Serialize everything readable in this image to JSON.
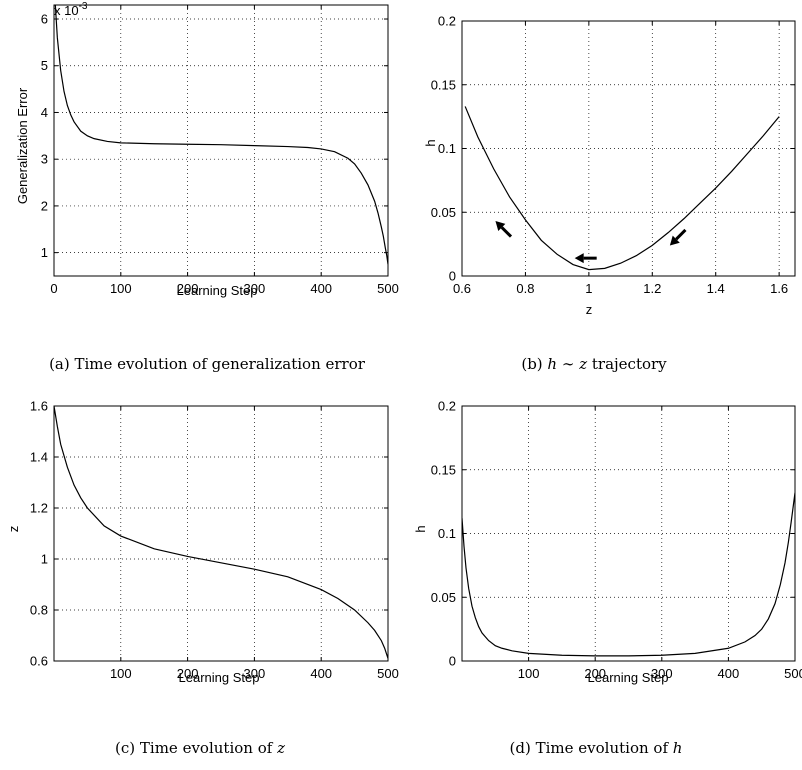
{
  "chart_data": [
    {
      "id": "a",
      "type": "line",
      "xlabel": "Learning Step",
      "ylabel": "Generalization Error",
      "exponent_label": "x 10",
      "exponent_power": "-3",
      "xlim": [
        0,
        500
      ],
      "ylim": [
        0.5,
        6.3
      ],
      "xticks": [
        0,
        100,
        200,
        300,
        400,
        500
      ],
      "yticks": [
        1,
        2,
        3,
        4,
        5,
        6
      ],
      "grid": true,
      "series": [
        {
          "x": [
            2,
            5,
            10,
            15,
            20,
            25,
            30,
            40,
            50,
            60,
            80,
            100,
            150,
            200,
            250,
            300,
            350,
            380,
            400,
            420,
            440,
            450,
            460,
            470,
            480,
            485,
            490,
            493,
            496,
            498,
            500
          ],
          "values": [
            6.3,
            5.6,
            4.9,
            4.45,
            4.15,
            3.95,
            3.8,
            3.6,
            3.5,
            3.44,
            3.38,
            3.35,
            3.33,
            3.32,
            3.31,
            3.29,
            3.27,
            3.25,
            3.22,
            3.16,
            3.02,
            2.9,
            2.7,
            2.45,
            2.1,
            1.85,
            1.55,
            1.35,
            1.1,
            0.95,
            0.75
          ]
        }
      ],
      "caption": "(a) Time evolution of generalization error"
    },
    {
      "id": "b",
      "type": "line",
      "xlabel": "z",
      "ylabel": "h",
      "xlim": [
        0.6,
        1.65
      ],
      "ylim": [
        0,
        0.2
      ],
      "xticks": [
        0.6,
        0.8,
        1,
        1.2,
        1.4,
        1.6
      ],
      "yticks": [
        0,
        0.05,
        0.1,
        0.15,
        0.2
      ],
      "grid": true,
      "series": [
        {
          "x": [
            0.61,
            0.65,
            0.7,
            0.75,
            0.8,
            0.85,
            0.9,
            0.95,
            1.0,
            1.05,
            1.1,
            1.15,
            1.2,
            1.25,
            1.3,
            1.35,
            1.4,
            1.45,
            1.5,
            1.55,
            1.6
          ],
          "values": [
            0.133,
            0.109,
            0.084,
            0.062,
            0.044,
            0.028,
            0.017,
            0.009,
            0.005,
            0.006,
            0.01,
            0.016,
            0.024,
            0.034,
            0.045,
            0.057,
            0.069,
            0.082,
            0.096,
            0.11,
            0.125
          ]
        }
      ],
      "arrows": [
        {
          "x": 0.73,
          "y": 0.037,
          "dir": "up-left"
        },
        {
          "x": 0.99,
          "y": 0.014,
          "dir": "left"
        },
        {
          "x": 1.28,
          "y": 0.03,
          "dir": "down-left"
        }
      ],
      "caption_prefix": "(b) ",
      "caption_h": "h",
      "caption_sim": " ∼ ",
      "caption_z": "z",
      "caption_suffix": " trajectory"
    },
    {
      "id": "c",
      "type": "line",
      "xlabel": "Learning Step",
      "ylabel": "z",
      "xlim": [
        0,
        500
      ],
      "ylim": [
        0.6,
        1.6
      ],
      "xticks": [
        100,
        200,
        300,
        400,
        500
      ],
      "yticks": [
        0.6,
        0.8,
        1,
        1.2,
        1.4,
        1.6
      ],
      "grid": true,
      "series": [
        {
          "x": [
            0,
            5,
            10,
            20,
            30,
            40,
            50,
            75,
            100,
            150,
            200,
            250,
            300,
            350,
            400,
            425,
            450,
            470,
            480,
            490,
            495,
            500
          ],
          "values": [
            1.6,
            1.52,
            1.45,
            1.36,
            1.29,
            1.24,
            1.2,
            1.13,
            1.09,
            1.04,
            1.01,
            0.985,
            0.96,
            0.93,
            0.88,
            0.845,
            0.8,
            0.75,
            0.72,
            0.68,
            0.65,
            0.61
          ]
        }
      ],
      "caption_prefix": "(c) Time evolution of ",
      "caption_var": "z"
    },
    {
      "id": "d",
      "type": "line",
      "xlabel": "Learning Step",
      "ylabel": "h",
      "xlim": [
        0,
        500
      ],
      "ylim": [
        0,
        0.2
      ],
      "xticks": [
        100,
        200,
        300,
        400,
        500
      ],
      "yticks": [
        0,
        0.05,
        0.1,
        0.15,
        0.2
      ],
      "grid": true,
      "series": [
        {
          "x": [
            0,
            3,
            6,
            10,
            15,
            20,
            25,
            30,
            40,
            50,
            60,
            75,
            100,
            150,
            200,
            250,
            300,
            350,
            400,
            425,
            440,
            450,
            460,
            470,
            478,
            485,
            490,
            494,
            497,
            500
          ],
          "values": [
            0.112,
            0.09,
            0.073,
            0.057,
            0.043,
            0.034,
            0.027,
            0.022,
            0.016,
            0.012,
            0.01,
            0.008,
            0.006,
            0.0045,
            0.004,
            0.004,
            0.0045,
            0.006,
            0.01,
            0.015,
            0.02,
            0.025,
            0.033,
            0.045,
            0.06,
            0.077,
            0.093,
            0.108,
            0.12,
            0.132
          ]
        }
      ],
      "caption_prefix": "(d) Time evolution of ",
      "caption_var": "h"
    }
  ]
}
